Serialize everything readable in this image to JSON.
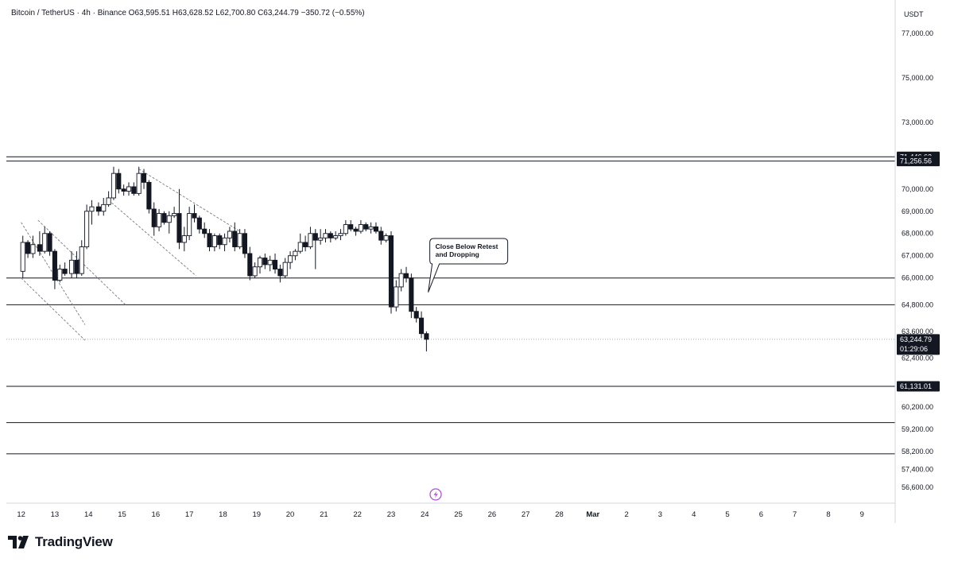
{
  "header": {
    "symbol": "Bitcoin / TetherUS · 4h · Binance",
    "open": "O63,595.51",
    "high": "H63,628.52",
    "low": "L62,700.80",
    "close": "C63,244.79",
    "change": "−350.72 (−0.55%)"
  },
  "footer": {
    "brand": "TradingView"
  },
  "annotation": {
    "line1": "Close Below Retest",
    "line2": "and Dropping"
  },
  "chart_data": {
    "type": "candlestick",
    "currency": "USDT",
    "ylim": [
      55880,
      78280
    ],
    "x_axis": {
      "labels": [
        "12",
        "13",
        "14",
        "15",
        "16",
        "17",
        "18",
        "19",
        "20",
        "21",
        "22",
        "23",
        "24",
        "25",
        "26",
        "27",
        "28",
        "Mar",
        "2",
        "3",
        "4",
        "5",
        "6",
        "7",
        "8",
        "9"
      ],
      "positions": [
        12,
        13,
        14,
        15,
        16,
        17,
        18,
        19,
        20,
        21,
        22,
        23,
        24,
        25,
        26,
        27,
        28,
        29,
        30,
        31,
        32,
        33,
        34,
        35,
        36,
        37
      ],
      "xlim": [
        11.82,
        37.75
      ]
    },
    "y_ticks": [
      77000,
      75000,
      73000,
      70000,
      69000,
      68000,
      67000,
      66000,
      64800,
      63600,
      62400,
      60200,
      59200,
      58200,
      57400,
      56600
    ],
    "horizontal_levels": [
      71446.62,
      71256.56,
      66000,
      64800,
      61131.01,
      59500,
      58100
    ],
    "price_tags": [
      {
        "value": 71446.62,
        "label": "71,446.62"
      },
      {
        "value": 71256.56,
        "label": "71,256.56"
      },
      {
        "value": 63244.79,
        "label": "63,244.79",
        "sub": "01:29:06"
      },
      {
        "value": 61131.01,
        "label": "61,131.01"
      }
    ],
    "current_price": 63244.79,
    "channels": [
      {
        "from": [
          12.0,
          68500
        ],
        "to": [
          13.9,
          63900
        ]
      },
      {
        "from": [
          12.0,
          66000
        ],
        "to": [
          13.9,
          63200
        ]
      },
      {
        "from": [
          12.5,
          68600
        ],
        "to": [
          15.1,
          64800
        ]
      },
      {
        "from": [
          14.6,
          69500
        ],
        "to": [
          17.2,
          66100
        ]
      },
      {
        "from": [
          15.5,
          70900
        ],
        "to": [
          18.5,
          68100
        ]
      }
    ],
    "annotation_anchor": [
      24.15,
      65500
    ],
    "candles": [
      {
        "t": 12.05,
        "o": 66300,
        "h": 67900,
        "l": 66000,
        "c": 67600
      },
      {
        "t": 12.2,
        "o": 67600,
        "h": 67700,
        "l": 66900,
        "c": 67100
      },
      {
        "t": 12.35,
        "o": 67100,
        "h": 67900,
        "l": 66900,
        "c": 67500
      },
      {
        "t": 12.55,
        "o": 67500,
        "h": 68100,
        "l": 67000,
        "c": 67200
      },
      {
        "t": 12.7,
        "o": 67200,
        "h": 68300,
        "l": 67100,
        "c": 68000
      },
      {
        "t": 12.85,
        "o": 68000,
        "h": 68100,
        "l": 67000,
        "c": 67200
      },
      {
        "t": 13.0,
        "o": 67200,
        "h": 67300,
        "l": 65500,
        "c": 65900
      },
      {
        "t": 13.15,
        "o": 65900,
        "h": 66600,
        "l": 65800,
        "c": 66400
      },
      {
        "t": 13.3,
        "o": 66400,
        "h": 66700,
        "l": 66100,
        "c": 66200
      },
      {
        "t": 13.5,
        "o": 66200,
        "h": 67200,
        "l": 66000,
        "c": 66800
      },
      {
        "t": 13.65,
        "o": 66800,
        "h": 67200,
        "l": 66000,
        "c": 66200
      },
      {
        "t": 13.8,
        "o": 66200,
        "h": 67700,
        "l": 66100,
        "c": 67400
      },
      {
        "t": 13.95,
        "o": 67400,
        "h": 69300,
        "l": 67300,
        "c": 69000
      },
      {
        "t": 14.1,
        "o": 69000,
        "h": 69500,
        "l": 68400,
        "c": 69200
      },
      {
        "t": 14.3,
        "o": 69200,
        "h": 69400,
        "l": 68800,
        "c": 69000
      },
      {
        "t": 14.45,
        "o": 69000,
        "h": 69600,
        "l": 68800,
        "c": 69300
      },
      {
        "t": 14.6,
        "o": 69300,
        "h": 69900,
        "l": 69200,
        "c": 69600
      },
      {
        "t": 14.75,
        "o": 69600,
        "h": 71000,
        "l": 69500,
        "c": 70700
      },
      {
        "t": 14.9,
        "o": 70700,
        "h": 70900,
        "l": 69800,
        "c": 70000
      },
      {
        "t": 15.05,
        "o": 70000,
        "h": 70200,
        "l": 69700,
        "c": 69900
      },
      {
        "t": 15.2,
        "o": 69900,
        "h": 70300,
        "l": 69700,
        "c": 70100
      },
      {
        "t": 15.35,
        "o": 70100,
        "h": 70300,
        "l": 69700,
        "c": 69800
      },
      {
        "t": 15.5,
        "o": 69800,
        "h": 71000,
        "l": 69700,
        "c": 70700
      },
      {
        "t": 15.65,
        "o": 70700,
        "h": 70900,
        "l": 70000,
        "c": 70300
      },
      {
        "t": 15.8,
        "o": 70300,
        "h": 70400,
        "l": 68900,
        "c": 69100
      },
      {
        "t": 15.95,
        "o": 69100,
        "h": 69400,
        "l": 67900,
        "c": 68300
      },
      {
        "t": 16.1,
        "o": 68300,
        "h": 69100,
        "l": 68100,
        "c": 68900
      },
      {
        "t": 16.25,
        "o": 68900,
        "h": 69000,
        "l": 68400,
        "c": 68500
      },
      {
        "t": 16.4,
        "o": 68500,
        "h": 69000,
        "l": 68000,
        "c": 68800
      },
      {
        "t": 16.55,
        "o": 68800,
        "h": 69200,
        "l": 68700,
        "c": 68900
      },
      {
        "t": 16.7,
        "o": 68900,
        "h": 70000,
        "l": 67300,
        "c": 67600
      },
      {
        "t": 16.85,
        "o": 67600,
        "h": 68300,
        "l": 67200,
        "c": 67900
      },
      {
        "t": 17.0,
        "o": 67900,
        "h": 69200,
        "l": 67700,
        "c": 68900
      },
      {
        "t": 17.15,
        "o": 68900,
        "h": 69300,
        "l": 68500,
        "c": 68700
      },
      {
        "t": 17.3,
        "o": 68700,
        "h": 68800,
        "l": 68000,
        "c": 68200
      },
      {
        "t": 17.45,
        "o": 68200,
        "h": 68500,
        "l": 67800,
        "c": 68000
      },
      {
        "t": 17.6,
        "o": 68000,
        "h": 68200,
        "l": 67200,
        "c": 67400
      },
      {
        "t": 17.75,
        "o": 67400,
        "h": 68000,
        "l": 67200,
        "c": 67900
      },
      {
        "t": 17.9,
        "o": 67900,
        "h": 68000,
        "l": 67300,
        "c": 67500
      },
      {
        "t": 18.05,
        "o": 67500,
        "h": 68000,
        "l": 67200,
        "c": 67800
      },
      {
        "t": 18.2,
        "o": 67800,
        "h": 68300,
        "l": 67600,
        "c": 68100
      },
      {
        "t": 18.35,
        "o": 68100,
        "h": 68500,
        "l": 67200,
        "c": 67400
      },
      {
        "t": 18.5,
        "o": 67400,
        "h": 68200,
        "l": 67300,
        "c": 68000
      },
      {
        "t": 18.65,
        "o": 68000,
        "h": 68200,
        "l": 66900,
        "c": 67100
      },
      {
        "t": 18.8,
        "o": 67100,
        "h": 67400,
        "l": 65900,
        "c": 66100
      },
      {
        "t": 18.95,
        "o": 66100,
        "h": 66700,
        "l": 66000,
        "c": 66500
      },
      {
        "t": 19.1,
        "o": 66500,
        "h": 67000,
        "l": 66200,
        "c": 66900
      },
      {
        "t": 19.25,
        "o": 66900,
        "h": 67100,
        "l": 66400,
        "c": 66600
      },
      {
        "t": 19.4,
        "o": 66600,
        "h": 67000,
        "l": 66300,
        "c": 66800
      },
      {
        "t": 19.55,
        "o": 66800,
        "h": 67100,
        "l": 66200,
        "c": 66400
      },
      {
        "t": 19.7,
        "o": 66400,
        "h": 66600,
        "l": 65800,
        "c": 66100
      },
      {
        "t": 19.85,
        "o": 66100,
        "h": 66900,
        "l": 66000,
        "c": 66700
      },
      {
        "t": 20.0,
        "o": 66700,
        "h": 67200,
        "l": 66400,
        "c": 67000
      },
      {
        "t": 20.15,
        "o": 67000,
        "h": 67300,
        "l": 66800,
        "c": 67200
      },
      {
        "t": 20.3,
        "o": 67200,
        "h": 68000,
        "l": 67100,
        "c": 67600
      },
      {
        "t": 20.45,
        "o": 67600,
        "h": 67900,
        "l": 67200,
        "c": 67400
      },
      {
        "t": 20.6,
        "o": 67400,
        "h": 68300,
        "l": 67300,
        "c": 68000
      },
      {
        "t": 20.75,
        "o": 68000,
        "h": 68200,
        "l": 66400,
        "c": 67700
      },
      {
        "t": 20.9,
        "o": 67700,
        "h": 68200,
        "l": 67500,
        "c": 67800
      },
      {
        "t": 21.05,
        "o": 67800,
        "h": 68200,
        "l": 67600,
        "c": 68000
      },
      {
        "t": 21.2,
        "o": 68000,
        "h": 68100,
        "l": 67600,
        "c": 67800
      },
      {
        "t": 21.35,
        "o": 67800,
        "h": 68100,
        "l": 67700,
        "c": 67900
      },
      {
        "t": 21.5,
        "o": 67900,
        "h": 68200,
        "l": 67700,
        "c": 68000
      },
      {
        "t": 21.65,
        "o": 68000,
        "h": 68600,
        "l": 67900,
        "c": 68400
      },
      {
        "t": 21.8,
        "o": 68400,
        "h": 68600,
        "l": 68100,
        "c": 68200
      },
      {
        "t": 21.95,
        "o": 68200,
        "h": 68300,
        "l": 67900,
        "c": 68100
      },
      {
        "t": 22.1,
        "o": 68100,
        "h": 68600,
        "l": 68000,
        "c": 68400
      },
      {
        "t": 22.25,
        "o": 68400,
        "h": 68500,
        "l": 68100,
        "c": 68200
      },
      {
        "t": 22.4,
        "o": 68200,
        "h": 68500,
        "l": 68000,
        "c": 68300
      },
      {
        "t": 22.55,
        "o": 68300,
        "h": 68500,
        "l": 68000,
        "c": 68100
      },
      {
        "t": 22.7,
        "o": 68100,
        "h": 68300,
        "l": 67500,
        "c": 67700
      },
      {
        "t": 22.85,
        "o": 67700,
        "h": 68000,
        "l": 67600,
        "c": 67900
      },
      {
        "t": 23.0,
        "o": 67900,
        "h": 68100,
        "l": 64400,
        "c": 64700
      },
      {
        "t": 23.15,
        "o": 64700,
        "h": 65900,
        "l": 64500,
        "c": 65600
      },
      {
        "t": 23.3,
        "o": 65600,
        "h": 66400,
        "l": 65400,
        "c": 66200
      },
      {
        "t": 23.45,
        "o": 66200,
        "h": 66500,
        "l": 65800,
        "c": 66000
      },
      {
        "t": 23.6,
        "o": 66000,
        "h": 66200,
        "l": 64200,
        "c": 64500
      },
      {
        "t": 23.75,
        "o": 64500,
        "h": 64700,
        "l": 64000,
        "c": 64200
      },
      {
        "t": 23.9,
        "o": 64200,
        "h": 64500,
        "l": 63300,
        "c": 63500
      },
      {
        "t": 24.05,
        "o": 63500,
        "h": 63600,
        "l": 62700,
        "c": 63245
      }
    ]
  }
}
